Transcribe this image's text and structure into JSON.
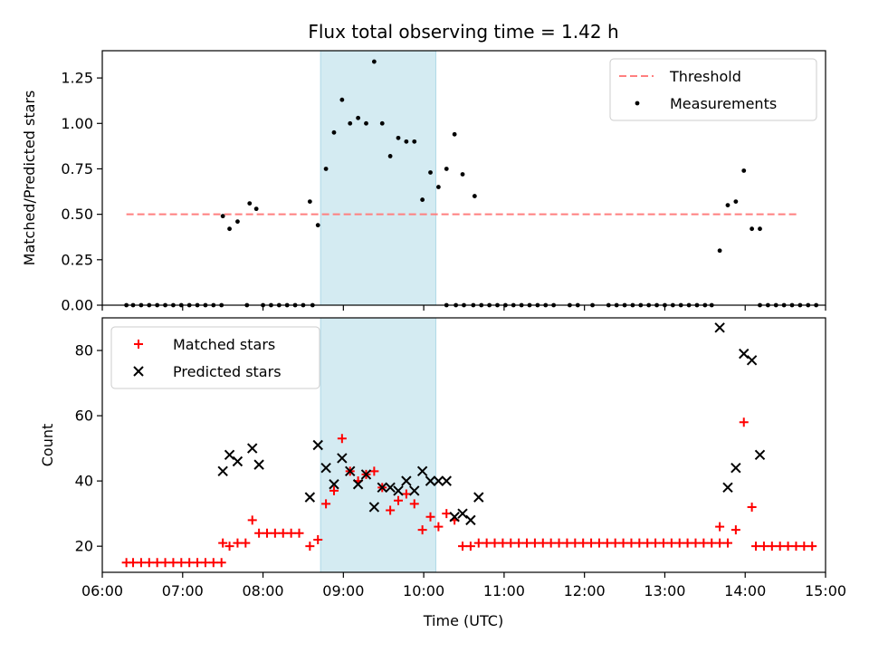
{
  "figure": {
    "title": "Flux total observing time = 1.42 h",
    "xlabel": "Time (UTC)"
  },
  "chart_data": [
    {
      "type": "scatter",
      "panel": "top",
      "title": "Flux total observing time = 1.42 h",
      "ylabel": "Matched/Predicted stars",
      "xlabel": "",
      "xlim": [
        "06:00",
        "15:00"
      ],
      "ylim": [
        0,
        1.4
      ],
      "yticks": [
        0,
        0.25,
        0.5,
        0.75,
        1.0,
        1.25
      ],
      "ytick_labels": [
        "0.00",
        "0.25",
        "0.50",
        "0.75",
        "1.00",
        "1.25"
      ],
      "shaded_span": [
        "08:43",
        "10:09"
      ],
      "threshold": {
        "name": "Threshold",
        "y": 0.5,
        "x_range": [
          "06:18",
          "14:39"
        ],
        "color": "#ff7f7f"
      },
      "legend_position": "upper right",
      "series": [
        {
          "name": "Measurements",
          "color": "#000000",
          "marker": "dot",
          "points": [
            [
              "06:18",
              0
            ],
            [
              "06:23",
              0
            ],
            [
              "06:29",
              0
            ],
            [
              "06:35",
              0
            ],
            [
              "06:41",
              0
            ],
            [
              "06:47",
              0
            ],
            [
              "06:53",
              0
            ],
            [
              "06:59",
              0
            ],
            [
              "07:05",
              0
            ],
            [
              "07:11",
              0
            ],
            [
              "07:17",
              0
            ],
            [
              "07:23",
              0
            ],
            [
              "07:29",
              0
            ],
            [
              "07:30",
              0.49
            ],
            [
              "07:35",
              0.42
            ],
            [
              "07:41",
              0.46
            ],
            [
              "07:48",
              0
            ],
            [
              "07:50",
              0.56
            ],
            [
              "07:55",
              0.53
            ],
            [
              "08:00",
              0
            ],
            [
              "08:06",
              0
            ],
            [
              "08:12",
              0
            ],
            [
              "08:18",
              0
            ],
            [
              "08:24",
              0
            ],
            [
              "08:30",
              0
            ],
            [
              "08:37",
              0
            ],
            [
              "08:35",
              0.57
            ],
            [
              "08:41",
              0.44
            ],
            [
              "08:47",
              0.75
            ],
            [
              "08:53",
              0.95
            ],
            [
              "08:59",
              1.13
            ],
            [
              "09:05",
              1.0
            ],
            [
              "09:11",
              1.03
            ],
            [
              "09:17",
              1.0
            ],
            [
              "09:23",
              1.34
            ],
            [
              "09:29",
              1.0
            ],
            [
              "09:35",
              0.82
            ],
            [
              "09:41",
              0.92
            ],
            [
              "09:47",
              0.9
            ],
            [
              "09:53",
              0.9
            ],
            [
              "09:59",
              0.58
            ],
            [
              "10:05",
              0.73
            ],
            [
              "10:11",
              0.65
            ],
            [
              "10:17",
              0.75
            ],
            [
              "10:23",
              0.94
            ],
            [
              "10:29",
              0.72
            ],
            [
              "10:38",
              0.6
            ],
            [
              "10:17",
              0
            ],
            [
              "10:24",
              0
            ],
            [
              "10:30",
              0
            ],
            [
              "10:37",
              0
            ],
            [
              "10:43",
              0
            ],
            [
              "10:49",
              0
            ],
            [
              "10:55",
              0
            ],
            [
              "11:01",
              0
            ],
            [
              "11:07",
              0
            ],
            [
              "11:13",
              0
            ],
            [
              "11:19",
              0
            ],
            [
              "11:25",
              0
            ],
            [
              "11:31",
              0
            ],
            [
              "11:37",
              0
            ],
            [
              "11:49",
              0
            ],
            [
              "11:55",
              0
            ],
            [
              "12:06",
              0
            ],
            [
              "12:18",
              0
            ],
            [
              "12:24",
              0
            ],
            [
              "12:30",
              0
            ],
            [
              "12:36",
              0
            ],
            [
              "12:42",
              0
            ],
            [
              "12:48",
              0
            ],
            [
              "12:54",
              0
            ],
            [
              "13:00",
              0
            ],
            [
              "13:06",
              0
            ],
            [
              "13:12",
              0
            ],
            [
              "13:18",
              0
            ],
            [
              "13:24",
              0
            ],
            [
              "13:30",
              0
            ],
            [
              "13:35",
              0
            ],
            [
              "13:41",
              0.3
            ],
            [
              "13:47",
              0.55
            ],
            [
              "13:53",
              0.57
            ],
            [
              "13:59",
              0.74
            ],
            [
              "14:05",
              0.42
            ],
            [
              "14:11",
              0.42
            ],
            [
              "14:11",
              0
            ],
            [
              "14:17",
              0
            ],
            [
              "14:23",
              0
            ],
            [
              "14:29",
              0
            ],
            [
              "14:35",
              0
            ],
            [
              "14:41",
              0
            ],
            [
              "14:47",
              0
            ],
            [
              "14:53",
              0
            ]
          ]
        }
      ]
    },
    {
      "type": "scatter",
      "panel": "bottom",
      "title": "",
      "ylabel": "Count",
      "xlabel": "Time (UTC)",
      "xlim": [
        "06:00",
        "15:00"
      ],
      "ylim": [
        12,
        90
      ],
      "yticks": [
        20,
        40,
        60,
        80
      ],
      "ytick_labels": [
        "20",
        "40",
        "60",
        "80"
      ],
      "xticks": [
        "06:00",
        "07:00",
        "08:00",
        "09:00",
        "10:00",
        "11:00",
        "12:00",
        "13:00",
        "14:00",
        "15:00"
      ],
      "shaded_span": [
        "08:43",
        "10:09"
      ],
      "legend_position": "upper left",
      "series": [
        {
          "name": "Matched stars",
          "color": "#ff0000",
          "marker": "plus",
          "points": [
            [
              "06:18",
              15
            ],
            [
              "06:23",
              15
            ],
            [
              "06:29",
              15
            ],
            [
              "06:35",
              15
            ],
            [
              "06:41",
              15
            ],
            [
              "06:47",
              15
            ],
            [
              "06:53",
              15
            ],
            [
              "06:59",
              15
            ],
            [
              "07:05",
              15
            ],
            [
              "07:11",
              15
            ],
            [
              "07:17",
              15
            ],
            [
              "07:23",
              15
            ],
            [
              "07:29",
              15
            ],
            [
              "07:30",
              21
            ],
            [
              "07:35",
              20
            ],
            [
              "07:41",
              21
            ],
            [
              "07:47",
              21
            ],
            [
              "07:52",
              28
            ],
            [
              "07:57",
              24
            ],
            [
              "08:03",
              24
            ],
            [
              "08:09",
              24
            ],
            [
              "08:15",
              24
            ],
            [
              "08:21",
              24
            ],
            [
              "08:27",
              24
            ],
            [
              "08:35",
              20
            ],
            [
              "08:41",
              22
            ],
            [
              "08:47",
              33
            ],
            [
              "08:53",
              37
            ],
            [
              "08:59",
              53
            ],
            [
              "09:05",
              43
            ],
            [
              "09:11",
              40
            ],
            [
              "09:17",
              42
            ],
            [
              "09:23",
              43
            ],
            [
              "09:29",
              38
            ],
            [
              "09:35",
              31
            ],
            [
              "09:41",
              34
            ],
            [
              "09:47",
              36
            ],
            [
              "09:53",
              33
            ],
            [
              "09:59",
              25
            ],
            [
              "10:05",
              29
            ],
            [
              "10:11",
              26
            ],
            [
              "10:17",
              30
            ],
            [
              "10:23",
              28
            ],
            [
              "10:29",
              20
            ],
            [
              "10:35",
              20
            ],
            [
              "10:41",
              21
            ],
            [
              "10:47",
              21
            ],
            [
              "10:53",
              21
            ],
            [
              "10:59",
              21
            ],
            [
              "11:05",
              21
            ],
            [
              "11:11",
              21
            ],
            [
              "11:17",
              21
            ],
            [
              "11:23",
              21
            ],
            [
              "11:29",
              21
            ],
            [
              "11:35",
              21
            ],
            [
              "11:41",
              21
            ],
            [
              "11:47",
              21
            ],
            [
              "11:53",
              21
            ],
            [
              "11:59",
              21
            ],
            [
              "12:05",
              21
            ],
            [
              "12:11",
              21
            ],
            [
              "12:17",
              21
            ],
            [
              "12:23",
              21
            ],
            [
              "12:29",
              21
            ],
            [
              "12:35",
              21
            ],
            [
              "12:41",
              21
            ],
            [
              "12:47",
              21
            ],
            [
              "12:53",
              21
            ],
            [
              "12:59",
              21
            ],
            [
              "13:05",
              21
            ],
            [
              "13:11",
              21
            ],
            [
              "13:17",
              21
            ],
            [
              "13:23",
              21
            ],
            [
              "13:29",
              21
            ],
            [
              "13:35",
              21
            ],
            [
              "13:41",
              21
            ],
            [
              "13:41",
              26
            ],
            [
              "13:47",
              21
            ],
            [
              "13:53",
              25
            ],
            [
              "13:59",
              58
            ],
            [
              "14:05",
              32
            ],
            [
              "14:08",
              20
            ],
            [
              "14:14",
              20
            ],
            [
              "14:20",
              20
            ],
            [
              "14:26",
              20
            ],
            [
              "14:32",
              20
            ],
            [
              "14:38",
              20
            ],
            [
              "14:44",
              20
            ],
            [
              "14:50",
              20
            ]
          ]
        },
        {
          "name": "Predicted stars",
          "color": "#000000",
          "marker": "x",
          "points": [
            [
              "07:30",
              43
            ],
            [
              "07:35",
              48
            ],
            [
              "07:41",
              46
            ],
            [
              "07:52",
              50
            ],
            [
              "07:57",
              45
            ],
            [
              "08:35",
              35
            ],
            [
              "08:41",
              51
            ],
            [
              "08:47",
              44
            ],
            [
              "08:53",
              39
            ],
            [
              "08:59",
              47
            ],
            [
              "09:05",
              43
            ],
            [
              "09:11",
              39
            ],
            [
              "09:17",
              42
            ],
            [
              "09:23",
              32
            ],
            [
              "09:29",
              38
            ],
            [
              "09:35",
              38
            ],
            [
              "09:41",
              37
            ],
            [
              "09:47",
              40
            ],
            [
              "09:53",
              37
            ],
            [
              "09:59",
              43
            ],
            [
              "10:05",
              40
            ],
            [
              "10:11",
              40
            ],
            [
              "10:17",
              40
            ],
            [
              "10:23",
              29
            ],
            [
              "10:29",
              30
            ],
            [
              "10:35",
              28
            ],
            [
              "10:41",
              35
            ],
            [
              "13:41",
              87
            ],
            [
              "13:47",
              38
            ],
            [
              "13:53",
              44
            ],
            [
              "13:59",
              79
            ],
            [
              "14:05",
              77
            ],
            [
              "14:11",
              48
            ]
          ]
        }
      ]
    }
  ]
}
